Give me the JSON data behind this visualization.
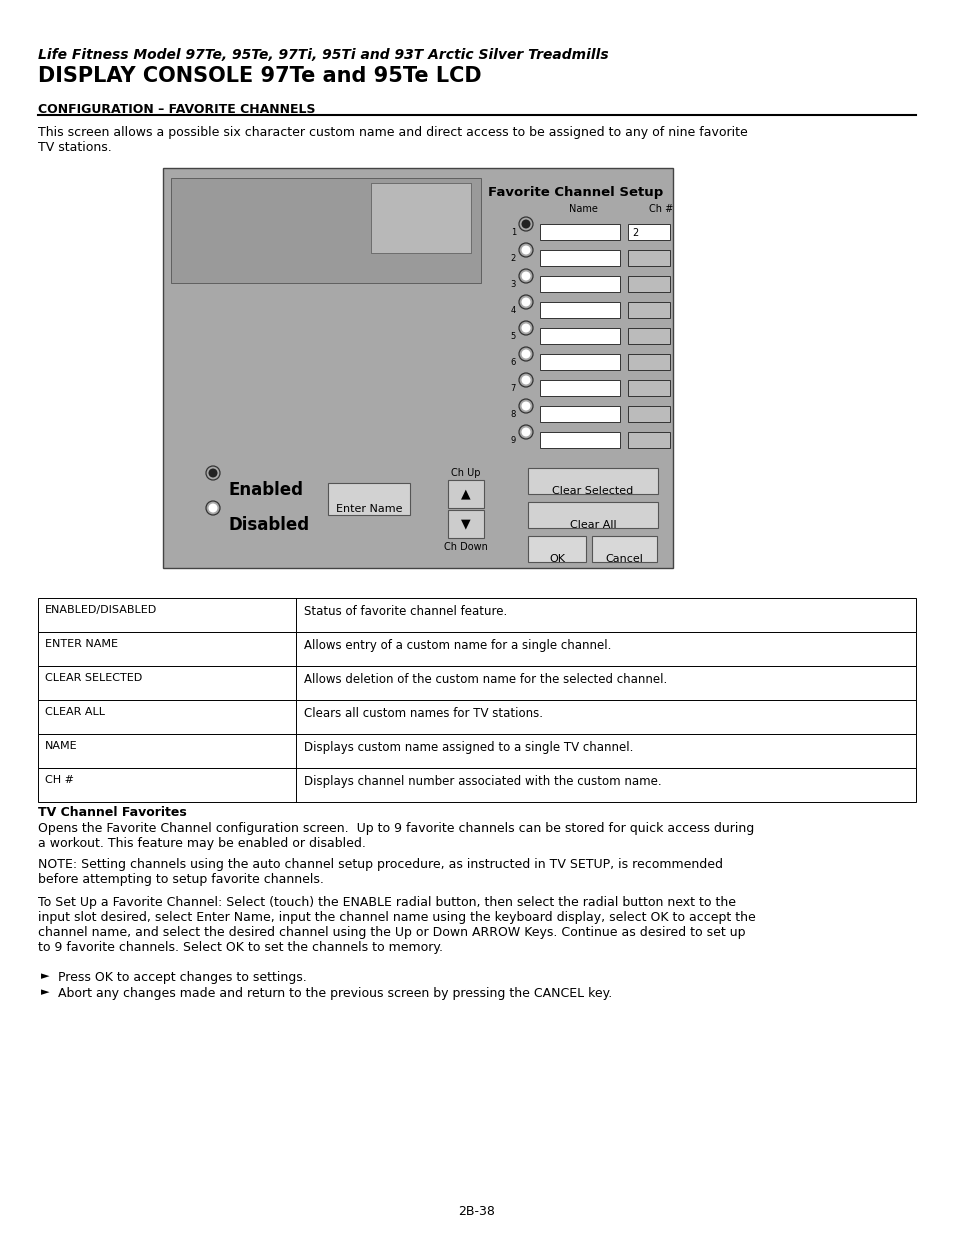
{
  "title_italic": "Life Fitness Model 97Te, 95Te, 97Ti, 95Ti and 93T Arctic Silver Treadmills",
  "title_bold": "DISPLAY CONSOLE 97Te and 95Te LCD",
  "section_header": "CONFIGURATION – FAVORITE CHANNELS",
  "intro_text": "This screen allows a possible six character custom name and direct access to be assigned to any of nine favorite\nTV stations.",
  "screen_title": "Favorite Channel Setup",
  "screen_col1": "Name",
  "screen_col2": "Ch #",
  "channel_rows": 9,
  "ch1_value": "2",
  "enabled_label": "Enabled",
  "disabled_label": "Disabled",
  "enter_name_label": "Enter Name",
  "ch_up_label": "Ch Up",
  "ch_down_label": "Ch Down",
  "clear_selected_label": "Clear Selected",
  "clear_all_label": "Clear All",
  "ok_label": "OK",
  "cancel_label": "Cancel",
  "table_rows": [
    [
      "ENABLED/DISABLED",
      "Status of favorite channel feature."
    ],
    [
      "ENTER NAME",
      "Allows entry of a custom name for a single channel."
    ],
    [
      "CLEAR SELECTED",
      "Allows deletion of the custom name for the selected channel."
    ],
    [
      "CLEAR ALL",
      "Clears all custom names for TV stations."
    ],
    [
      "NAME",
      "Displays custom name assigned to a single TV channel."
    ],
    [
      "CH #",
      "Displays channel number associated with the custom name."
    ]
  ],
  "section2_title": "TV Channel Favorites",
  "section2_body": "Opens the Favorite Channel configuration screen.  Up to 9 favorite channels can be stored for quick access during\na workout. This feature may be enabled or disabled.",
  "note_text": "NOTE: Setting channels using the auto channel setup procedure, as instructed in TV SETUP, is recommended\nbefore attempting to setup favorite channels.",
  "setup_text": "To Set Up a Favorite Channel: Select (touch) the ENABLE radial button, then select the radial button next to the\ninput slot desired, select Enter Name, input the channel name using the keyboard display, select OK to accept the\nchannel name, and select the desired channel using the Up or Down ARROW Keys. Continue as desired to set up\nto 9 favorite channels. Select OK to set the channels to memory.",
  "bullet1": "Press OK to accept changes to settings.",
  "bullet2": "Abort any changes made and return to the previous screen by pressing the CANCEL key.",
  "page_number": "2B-38",
  "bg_color": "#ffffff",
  "screen_bg": "#a8a8a8",
  "table_border": "#000000",
  "text_color": "#000000"
}
